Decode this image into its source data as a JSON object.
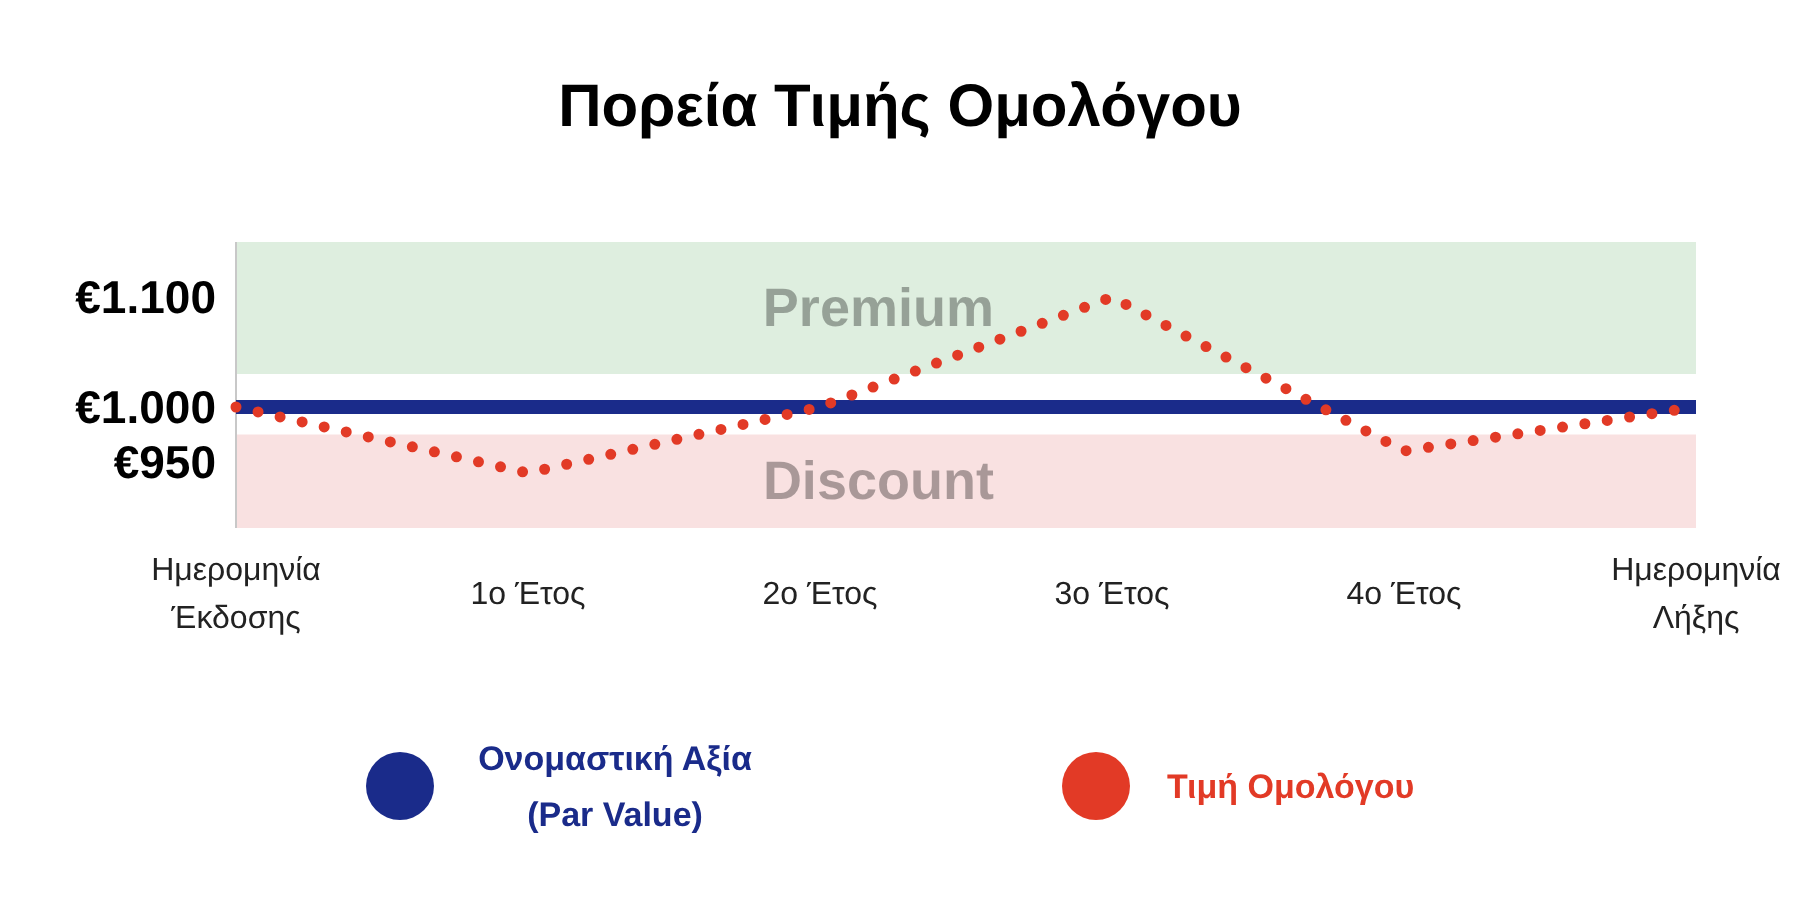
{
  "chart_data": {
    "type": "line",
    "title": "Πορεία Τιμής Ομολόγου",
    "categories": [
      "Ημερομηνία Έκδοσης",
      "1ο Έτος",
      "2ο Έτος",
      "3ο Έτος",
      "4ο Έτος",
      "Ημερομηνία Λήξης"
    ],
    "series": [
      {
        "name": "Ονομαστική Αξία (Par Value)",
        "color": "#1a2b8a",
        "values": [
          1000,
          1000,
          1000,
          1000,
          1000,
          1000
        ],
        "line_style": "solid"
      },
      {
        "name": "Τιμή Ομολόγου",
        "color": "#e23a26",
        "values": [
          1000,
          940,
          1000,
          1100,
          960,
          1000
        ],
        "line_style": "dotted"
      }
    ],
    "ylim": [
      890,
      1150
    ],
    "yticks": [
      {
        "value": 950,
        "label": "€950"
      },
      {
        "value": 1000,
        "label": "€1.000"
      },
      {
        "value": 1100,
        "label": "€1.100"
      }
    ],
    "bands": [
      {
        "axis": "y",
        "from": 1030,
        "to": 1150,
        "label": "Premium",
        "color": "#deeedf"
      },
      {
        "axis": "y",
        "from": 890,
        "to": 975,
        "label": "Discount",
        "color": "#f9e1e1"
      }
    ],
    "legend": "bottom"
  }
}
